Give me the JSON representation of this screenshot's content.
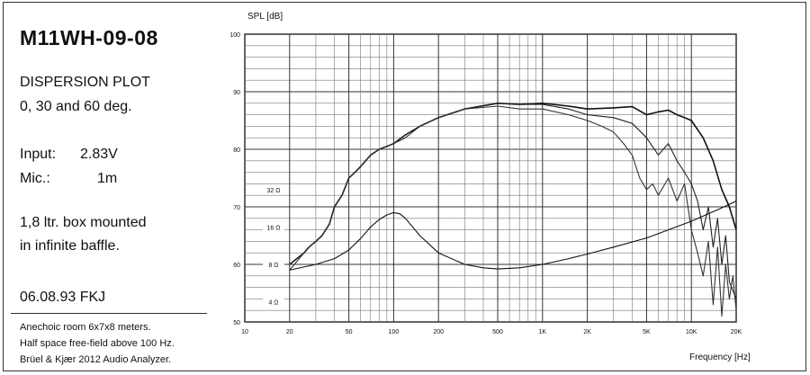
{
  "panel": {
    "model": "M11WH-09-08",
    "plot_title": "DISPERSION PLOT",
    "angles": "0, 30 and 60 deg.",
    "input_label": "Input:",
    "input_value": "2.83V",
    "mic_label": "Mic.:",
    "mic_value": "1m",
    "box_line1": "1,8 ltr. box mounted",
    "box_line2": "in infinite baffle.",
    "date": "06.08.93 FKJ",
    "note1": "Anechoic room 6x7x8 meters.",
    "note2": "Half space free-field above 100 Hz.",
    "note3": "Brüel & Kjær 2012 Audio Analyzer."
  },
  "chart_data": {
    "type": "line",
    "title": "",
    "ylabel": "SPL [dB]",
    "xlabel": "Frequency [Hz]",
    "x_scale": "log",
    "xlim": [
      10,
      20000
    ],
    "ylim": [
      50,
      100
    ],
    "grid": true,
    "x_ticks": [
      10,
      20,
      50,
      100,
      200,
      500,
      1000,
      2000,
      5000,
      10000,
      20000
    ],
    "x_tick_labels": [
      "10",
      "20",
      "50",
      "100",
      "200",
      "500",
      "1K",
      "2K",
      "5K",
      "10K",
      "20K"
    ],
    "y_ticks": [
      50,
      60,
      70,
      80,
      90,
      100
    ],
    "y_tick_labels": [
      "50",
      "60",
      "70",
      "80",
      "90",
      "100"
    ],
    "impedance_scale": [
      {
        "label": "4 Ω",
        "db": 53.5
      },
      {
        "label": "8 Ω",
        "db": 60
      },
      {
        "label": "16 Ω",
        "db": 66.5
      },
      {
        "label": "32 Ω",
        "db": 73
      }
    ],
    "series": [
      {
        "x": [
          20,
          25,
          27,
          30,
          33,
          37,
          40,
          45,
          50,
          55,
          60,
          70,
          80,
          90,
          100,
          120,
          150,
          200,
          300,
          500,
          700,
          1000,
          1500,
          2000,
          3000,
          4000,
          5000,
          6000,
          7000,
          8000,
          9000,
          10000,
          12000,
          14000,
          16000,
          18000,
          20000
        ],
        "y": [
          60,
          62,
          63,
          64,
          65,
          67,
          70,
          72,
          75,
          76,
          77,
          79,
          80,
          80.5,
          81,
          82.5,
          84,
          85.5,
          87,
          88,
          87.8,
          88,
          87.5,
          87,
          87.2,
          87.4,
          86,
          86.5,
          86.8,
          86,
          85.5,
          85,
          82,
          78,
          73,
          70,
          66
        ],
        "color": "#111111"
      },
      {
        "x": [
          20,
          25,
          27,
          30,
          33,
          37,
          40,
          45,
          50,
          55,
          60,
          70,
          80,
          90,
          100,
          120,
          150,
          200,
          300,
          500,
          700,
          1000,
          1500,
          2000,
          3000,
          4000,
          5000,
          6000,
          7000,
          8000,
          9000,
          10000,
          11000,
          12000,
          13000,
          14000,
          15000,
          16000,
          17000,
          18000,
          20000
        ],
        "y": [
          60,
          62,
          63,
          64,
          65,
          67,
          70,
          72,
          75,
          76,
          77,
          79,
          80,
          80.5,
          81,
          82.5,
          84,
          85.5,
          87,
          88,
          87.8,
          87.8,
          87,
          86,
          85.5,
          84.5,
          82,
          79,
          81,
          78,
          76,
          74,
          71,
          66,
          70,
          63,
          68,
          60,
          65,
          57,
          54
        ],
        "color": "#222222"
      },
      {
        "x": [
          20,
          25,
          27,
          30,
          33,
          37,
          40,
          45,
          50,
          55,
          60,
          70,
          80,
          90,
          100,
          120,
          150,
          200,
          300,
          500,
          700,
          1000,
          1500,
          2000,
          2500,
          3000,
          3500,
          4000,
          4500,
          5000,
          5500,
          6000,
          7000,
          8000,
          9000,
          10000,
          11000,
          12000,
          13000,
          14000,
          15000,
          16000,
          17000,
          18000,
          19000,
          20000
        ],
        "y": [
          59,
          62,
          63,
          64,
          65,
          67,
          70,
          72,
          75,
          76,
          77,
          79,
          80,
          80.5,
          81,
          82,
          84,
          85.5,
          87,
          87.5,
          87,
          87,
          86,
          85,
          84,
          83,
          81,
          79,
          75,
          73,
          74,
          72,
          75,
          71,
          74,
          66,
          62,
          58,
          64,
          53,
          63,
          51,
          60,
          54,
          58,
          52
        ],
        "color": "#333333"
      },
      {
        "x": [
          20,
          30,
          40,
          50,
          60,
          70,
          80,
          90,
          100,
          110,
          120,
          150,
          200,
          300,
          400,
          500,
          700,
          1000,
          1500,
          2000,
          3000,
          5000,
          7000,
          10000,
          15000,
          20000
        ],
        "y": [
          59,
          60,
          61,
          62.5,
          64.5,
          66.5,
          67.8,
          68.6,
          69,
          68.8,
          68,
          65,
          62,
          60,
          59.4,
          59.2,
          59.4,
          60,
          61,
          61.8,
          63,
          64.6,
          66,
          67.5,
          69.5,
          71
        ],
        "color": "#111111"
      }
    ]
  }
}
